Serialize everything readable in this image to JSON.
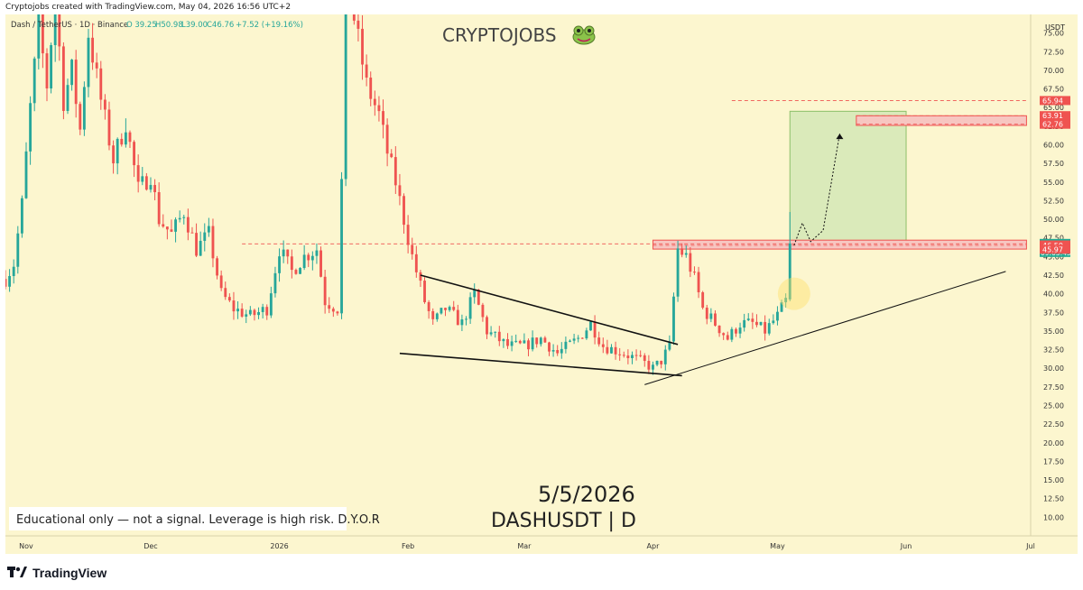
{
  "header": {
    "attribution": "Cryptojobs created with TradingView.com, May 04, 2026 16:56 UTC+2"
  },
  "legend": {
    "symbol": "Dash / TetherUS · 1D · Binance",
    "open": "O 39.25",
    "high": "H50.98",
    "low": "L39.00",
    "close": "C46.76",
    "change": "+7.52 (+19.16%)"
  },
  "watermark": {
    "brand": "CRYPTOJOBS",
    "date": "5/5/2026",
    "pair": "DASHUSDT | D"
  },
  "disclaimer": "Educational only — not a signal. Leverage is high risk. D.Y.O.R",
  "footer": {
    "tradingview": "TradingView"
  },
  "colors": {
    "background": "#fcf6cf",
    "up": "#26a69a",
    "down": "#ef5350",
    "zone_fill": "#f7c6c1",
    "target_fill": "#cfe6b3",
    "current_price_bg": "#22ab94"
  },
  "chart_data": {
    "type": "candlestick",
    "currency": "USDT",
    "ylim": [
      7.5,
      77.5
    ],
    "y_ticks": [
      "75.00",
      "72.50",
      "70.00",
      "67.50",
      "65.00",
      "62.50",
      "60.00",
      "57.50",
      "55.00",
      "52.50",
      "50.00",
      "47.50",
      "45.00",
      "42.50",
      "40.00",
      "37.50",
      "35.00",
      "32.50",
      "30.00",
      "27.50",
      "25.00",
      "22.50",
      "20.00",
      "17.50",
      "15.00",
      "12.50",
      "10.00"
    ],
    "x_labels": [
      {
        "label": "Nov",
        "date": "2025-11-01"
      },
      {
        "label": "Dec",
        "date": "2025-12-01"
      },
      {
        "label": "2026",
        "date": "2026-01-01"
      },
      {
        "label": "Feb",
        "date": "2026-02-01"
      },
      {
        "label": "Mar",
        "date": "2026-03-01"
      },
      {
        "label": "Apr",
        "date": "2026-04-01"
      },
      {
        "label": "May",
        "date": "2026-05-01"
      },
      {
        "label": "Jun",
        "date": "2026-06-01"
      },
      {
        "label": "Jul",
        "date": "2026-07-01"
      }
    ],
    "x_range": [
      "2025-10-27",
      "2026-07-01"
    ],
    "keypoints": [
      {
        "date": "2025-10-27",
        "price": 42
      },
      {
        "date": "2025-10-29",
        "price": 44
      },
      {
        "date": "2025-10-31",
        "price": 52
      },
      {
        "date": "2025-11-02",
        "price": 65
      },
      {
        "date": "2025-11-04",
        "price": 76
      },
      {
        "date": "2025-11-06",
        "price": 68
      },
      {
        "date": "2025-11-08",
        "price": 80
      },
      {
        "date": "2025-11-10",
        "price": 66
      },
      {
        "date": "2025-11-12",
        "price": 70
      },
      {
        "date": "2025-11-14",
        "price": 62
      },
      {
        "date": "2025-11-16",
        "price": 75
      },
      {
        "date": "2025-11-19",
        "price": 66
      },
      {
        "date": "2025-11-22",
        "price": 58
      },
      {
        "date": "2025-11-25",
        "price": 63
      },
      {
        "date": "2025-11-28",
        "price": 54
      },
      {
        "date": "2025-12-01",
        "price": 56
      },
      {
        "date": "2025-12-03",
        "price": 50
      },
      {
        "date": "2025-12-06",
        "price": 48
      },
      {
        "date": "2025-12-09",
        "price": 51
      },
      {
        "date": "2025-12-12",
        "price": 46
      },
      {
        "date": "2025-12-15",
        "price": 48
      },
      {
        "date": "2025-12-18",
        "price": 40
      },
      {
        "date": "2025-12-21",
        "price": 38
      },
      {
        "date": "2025-12-25",
        "price": 37
      },
      {
        "date": "2025-12-29",
        "price": 38
      },
      {
        "date": "2026-01-01",
        "price": 46
      },
      {
        "date": "2026-01-04",
        "price": 43
      },
      {
        "date": "2026-01-07",
        "price": 45
      },
      {
        "date": "2026-01-10",
        "price": 46
      },
      {
        "date": "2026-01-12",
        "price": 39
      },
      {
        "date": "2026-01-15",
        "price": 38
      },
      {
        "date": "2026-01-16",
        "price": 55
      },
      {
        "date": "2026-01-17",
        "price": 76
      },
      {
        "date": "2026-01-18",
        "price": 80
      },
      {
        "date": "2026-01-20",
        "price": 74
      },
      {
        "date": "2026-01-22",
        "price": 68
      },
      {
        "date": "2026-01-25",
        "price": 64
      },
      {
        "date": "2026-01-27",
        "price": 59
      },
      {
        "date": "2026-01-29",
        "price": 55
      },
      {
        "date": "2026-01-31",
        "price": 50
      },
      {
        "date": "2026-02-02",
        "price": 45
      },
      {
        "date": "2026-02-05",
        "price": 39
      },
      {
        "date": "2026-02-07",
        "price": 36
      },
      {
        "date": "2026-02-10",
        "price": 38
      },
      {
        "date": "2026-02-14",
        "price": 36
      },
      {
        "date": "2026-02-17",
        "price": 40
      },
      {
        "date": "2026-02-20",
        "price": 35
      },
      {
        "date": "2026-02-25",
        "price": 33
      },
      {
        "date": "2026-03-01",
        "price": 33
      },
      {
        "date": "2026-03-05",
        "price": 34
      },
      {
        "date": "2026-03-09",
        "price": 32
      },
      {
        "date": "2026-03-14",
        "price": 34
      },
      {
        "date": "2026-03-17",
        "price": 36
      },
      {
        "date": "2026-03-20",
        "price": 33
      },
      {
        "date": "2026-03-25",
        "price": 32
      },
      {
        "date": "2026-03-29",
        "price": 31
      },
      {
        "date": "2026-04-01",
        "price": 30
      },
      {
        "date": "2026-04-03",
        "price": 31
      },
      {
        "date": "2026-04-05",
        "price": 33
      },
      {
        "date": "2026-04-07",
        "price": 46
      },
      {
        "date": "2026-04-09",
        "price": 45
      },
      {
        "date": "2026-04-11",
        "price": 42
      },
      {
        "date": "2026-04-13",
        "price": 38
      },
      {
        "date": "2026-04-16",
        "price": 36
      },
      {
        "date": "2026-04-19",
        "price": 34
      },
      {
        "date": "2026-04-22",
        "price": 36
      },
      {
        "date": "2026-04-25",
        "price": 36
      },
      {
        "date": "2026-04-28",
        "price": 35
      },
      {
        "date": "2026-05-01",
        "price": 37
      },
      {
        "date": "2026-05-03",
        "price": 39
      },
      {
        "date": "2026-05-04",
        "price": 46.76
      }
    ],
    "last_bar": {
      "open": 39.25,
      "high": 50.98,
      "low": 39.0,
      "close": 46.76
    },
    "price_labels": [
      {
        "value": "65.94",
        "price": 65.94,
        "color": "#ef5350"
      },
      {
        "value": "63.91",
        "price": 63.91,
        "color": "#ef5350"
      },
      {
        "value": "62.76",
        "price": 62.76,
        "color": "#ef5350"
      },
      {
        "value": "46.76",
        "price": 46.76,
        "color": "#22ab94",
        "sub": "09:03:43"
      },
      {
        "value": "46.55",
        "price": 46.55,
        "color": "#ef5350"
      },
      {
        "value": "46.50",
        "price": 46.5,
        "color": "#ef5350"
      },
      {
        "value": "45.97",
        "price": 45.97,
        "color": "#ef5350"
      }
    ],
    "resistance_zone": {
      "from": "2026-04-01",
      "to": "2026-06-30",
      "top": 47.2,
      "bottom": 46.0
    },
    "target_zone": {
      "from": "2026-05-20",
      "to": "2026-06-30",
      "top": 63.9,
      "bottom": 62.6
    },
    "projection_box": {
      "from": "2026-05-04",
      "to": "2026-06-01",
      "top": 64.5,
      "bottom": 47.0
    },
    "dashed_levels": [
      {
        "price": 65.94,
        "from": "2026-04-20",
        "to": "2026-06-30"
      },
      {
        "price": 63.91,
        "from": "2026-05-20",
        "to": "2026-06-30"
      },
      {
        "price": 62.76,
        "from": "2026-05-20",
        "to": "2026-06-30"
      },
      {
        "price": 46.7,
        "from": "2025-12-23",
        "to": "2026-06-30"
      },
      {
        "price": 46.5,
        "from": "2026-04-01",
        "to": "2026-06-30"
      }
    ],
    "trendlines": [
      {
        "from": {
          "date": "2026-02-04",
          "price": 42.5
        },
        "to": {
          "date": "2026-04-07",
          "price": 33.2
        }
      },
      {
        "from": {
          "date": "2026-01-30",
          "price": 32.0
        },
        "to": {
          "date": "2026-04-08",
          "price": 29.0
        }
      },
      {
        "from": {
          "date": "2026-03-30",
          "price": 27.8
        },
        "to": {
          "date": "2026-06-25",
          "price": 43.0
        }
      }
    ],
    "projection_path": [
      {
        "date": "2026-05-05",
        "price": 46.5
      },
      {
        "date": "2026-05-07",
        "price": 49.5
      },
      {
        "date": "2026-05-09",
        "price": 47.0
      },
      {
        "date": "2026-05-12",
        "price": 48.5
      },
      {
        "date": "2026-05-16",
        "price": 61.5
      }
    ],
    "highlight_circle": {
      "date": "2026-05-05",
      "price": 40.0
    }
  }
}
